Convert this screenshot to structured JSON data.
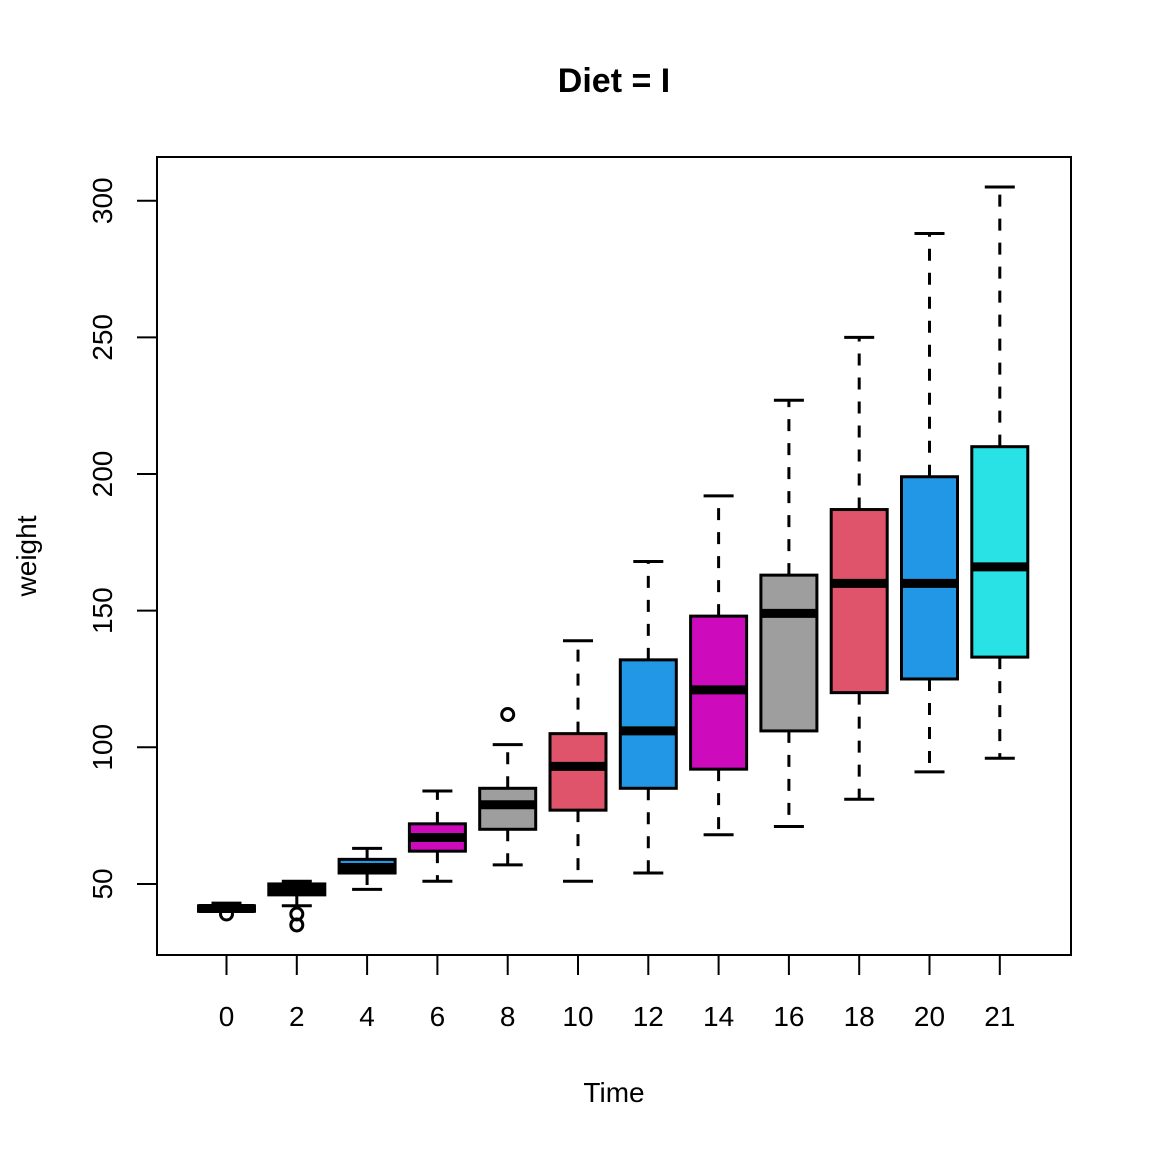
{
  "chart_data": {
    "type": "boxplot",
    "title": "Diet = I",
    "xlabel": "Time",
    "ylabel": "weight",
    "categories": [
      "0",
      "2",
      "4",
      "6",
      "8",
      "10",
      "12",
      "14",
      "16",
      "18",
      "20",
      "21"
    ],
    "boxes": [
      {
        "min": 40,
        "q1": 40,
        "median": 41,
        "q3": 42,
        "max": 43,
        "outliers": [
          39
        ],
        "color": "#000000"
      },
      {
        "min": 42,
        "q1": 46,
        "median": 48,
        "q3": 50,
        "max": 51,
        "outliers": [
          35,
          39
        ],
        "color": "#000000"
      },
      {
        "min": 48,
        "q1": 54,
        "median": 56,
        "q3": 59,
        "max": 63,
        "outliers": [],
        "color": "#2297E6"
      },
      {
        "min": 51,
        "q1": 62,
        "median": 67,
        "q3": 72,
        "max": 84,
        "outliers": [],
        "color": "#CD0BBC"
      },
      {
        "min": 57,
        "q1": 70,
        "median": 79,
        "q3": 85,
        "max": 101,
        "outliers": [
          112
        ],
        "color": "#9E9E9E"
      },
      {
        "min": 51,
        "q1": 77,
        "median": 93,
        "q3": 105,
        "max": 139,
        "outliers": [],
        "color": "#DF536B"
      },
      {
        "min": 54,
        "q1": 85,
        "median": 106,
        "q3": 132,
        "max": 168,
        "outliers": [],
        "color": "#2297E6"
      },
      {
        "min": 68,
        "q1": 92,
        "median": 121,
        "q3": 148,
        "max": 192,
        "outliers": [],
        "color": "#CD0BBC"
      },
      {
        "min": 71,
        "q1": 106,
        "median": 149,
        "q3": 163,
        "max": 227,
        "outliers": [],
        "color": "#9E9E9E"
      },
      {
        "min": 81,
        "q1": 120,
        "median": 160,
        "q3": 187,
        "max": 250,
        "outliers": [],
        "color": "#DF536B"
      },
      {
        "min": 91,
        "q1": 125,
        "median": 160,
        "q3": 199,
        "max": 288,
        "outliers": [],
        "color": "#2297E6"
      },
      {
        "min": 96,
        "q1": 133,
        "median": 166,
        "q3": 210,
        "max": 305,
        "outliers": [],
        "color": "#28E2E5"
      }
    ],
    "yticks": [
      50,
      100,
      150,
      200,
      250,
      300
    ],
    "ylim": [
      24,
      316
    ],
    "grid": false,
    "legend": "none"
  }
}
